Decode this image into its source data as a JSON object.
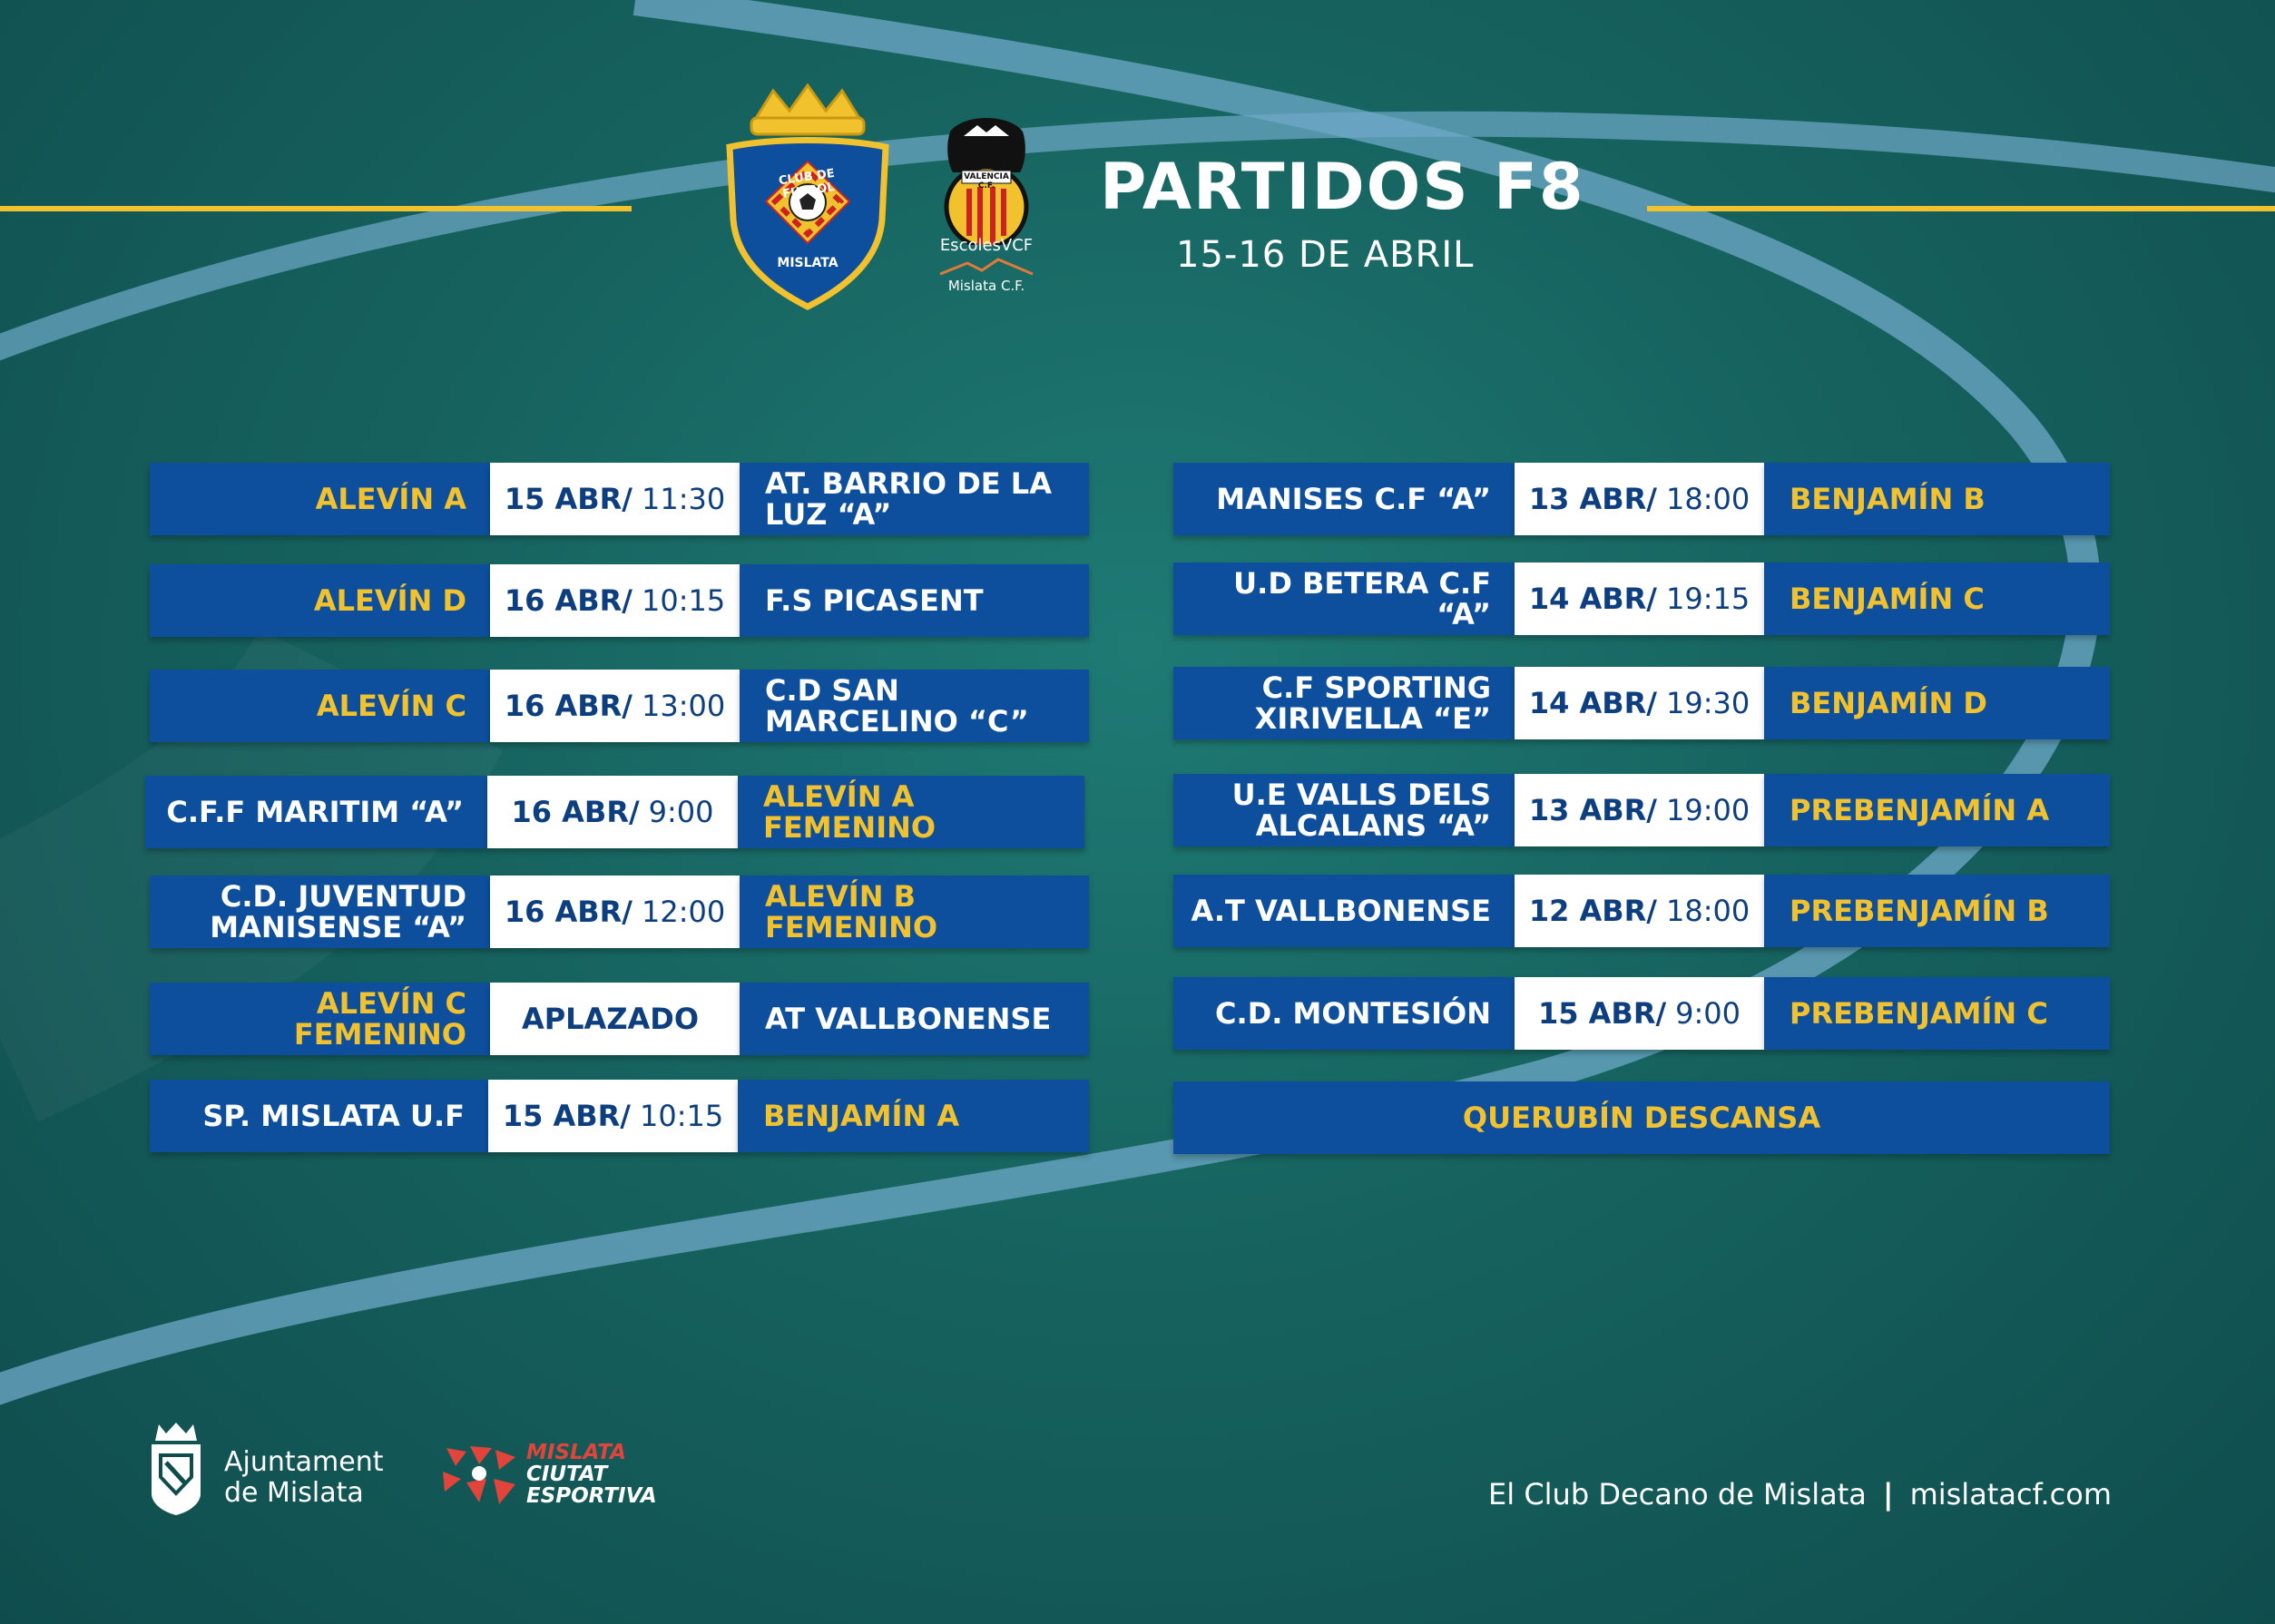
{
  "header": {
    "title": "PARTIDOS F8",
    "subtitle": "15-16 DE ABRIL",
    "accent_color": "#f2c12e"
  },
  "logos": {
    "club": {
      "icon": "crest-icon",
      "arc_text": "CLUB DE FUTBOL",
      "bottom_text": "MISLATA"
    },
    "vcf": {
      "icon": "bat-crest-icon",
      "crest_text": "VALENCIA C.F.",
      "line1": "EscolesVCF",
      "line2": "Mislata C.F."
    }
  },
  "left_matches": [
    {
      "team": "ALEVÍN A",
      "team_gold": true,
      "date": "15 ABR/",
      "time": "11:30",
      "opponent": "AT. BARRIO DE LA LUZ “A”",
      "opponent_gold": false
    },
    {
      "team": "ALEVÍN D",
      "team_gold": true,
      "date": "16 ABR/",
      "time": "10:15",
      "opponent": "F.S PICASENT",
      "opponent_gold": false
    },
    {
      "team": "ALEVÍN C",
      "team_gold": true,
      "date": "16 ABR/",
      "time": "13:00",
      "opponent": "C.D SAN MARCELINO “C”",
      "opponent_gold": false
    },
    {
      "team": "C.F.F MARITIM “A”",
      "team_gold": false,
      "date": "16 ABR/",
      "time": "9:00",
      "opponent": "ALEVÍN A FEMENINO",
      "opponent_gold": true
    },
    {
      "team": "C.D. JUVENTUD MANISENSE “A”",
      "team_gold": false,
      "date": "16 ABR/",
      "time": "12:00",
      "opponent": "ALEVÍN B FEMENINO",
      "opponent_gold": true
    },
    {
      "team": "ALEVÍN C FEMENINO",
      "team_gold": true,
      "date": "APLAZADO",
      "time": "",
      "opponent": "AT VALLBONENSE",
      "opponent_gold": false
    },
    {
      "team": "SP. MISLATA U.F",
      "team_gold": false,
      "date": "15 ABR/",
      "time": "10:15",
      "opponent": "BENJAMÍN A",
      "opponent_gold": true
    }
  ],
  "right_matches": [
    {
      "team": "MANISES C.F “A”",
      "team_gold": false,
      "date": "13 ABR/",
      "time": "18:00",
      "opponent": "BENJAMÍN B",
      "opponent_gold": true
    },
    {
      "team": "U.D BETERA C.F “A”",
      "team_gold": false,
      "date": "14 ABR/",
      "time": "19:15",
      "opponent": "BENJAMÍN C",
      "opponent_gold": true
    },
    {
      "team": "C.F SPORTING XIRIVELLA “E”",
      "team_gold": false,
      "date": "14 ABR/",
      "time": "19:30",
      "opponent": "BENJAMÍN D",
      "opponent_gold": true
    },
    {
      "team": "U.E VALLS DELS ALCALANS “A”",
      "team_gold": false,
      "date": "13 ABR/",
      "time": "19:00",
      "opponent": "PREBENJAMÍN A",
      "opponent_gold": true
    },
    {
      "team": "A.T VALLBONENSE",
      "team_gold": false,
      "date": "12 ABR/",
      "time": "18:00",
      "opponent": "PREBENJAMÍN B",
      "opponent_gold": true
    },
    {
      "team": "C.D. MONTESIÓN",
      "team_gold": false,
      "date": "15 ABR/",
      "time": "9:00",
      "opponent": "PREBENJAMÍN C",
      "opponent_gold": true
    }
  ],
  "rest_note": "QUERUBÍN DESCANSA",
  "footer": {
    "ajuntament_line1": "Ajuntament",
    "ajuntament_line2": "de Mislata",
    "ciutat_line1": "MISLATA",
    "ciutat_line2": "CIUTAT",
    "ciutat_line3": "ESPORTIVA",
    "slogan": "El Club Decano de Mislata",
    "separator": "|",
    "website": "mislatacf.com"
  }
}
